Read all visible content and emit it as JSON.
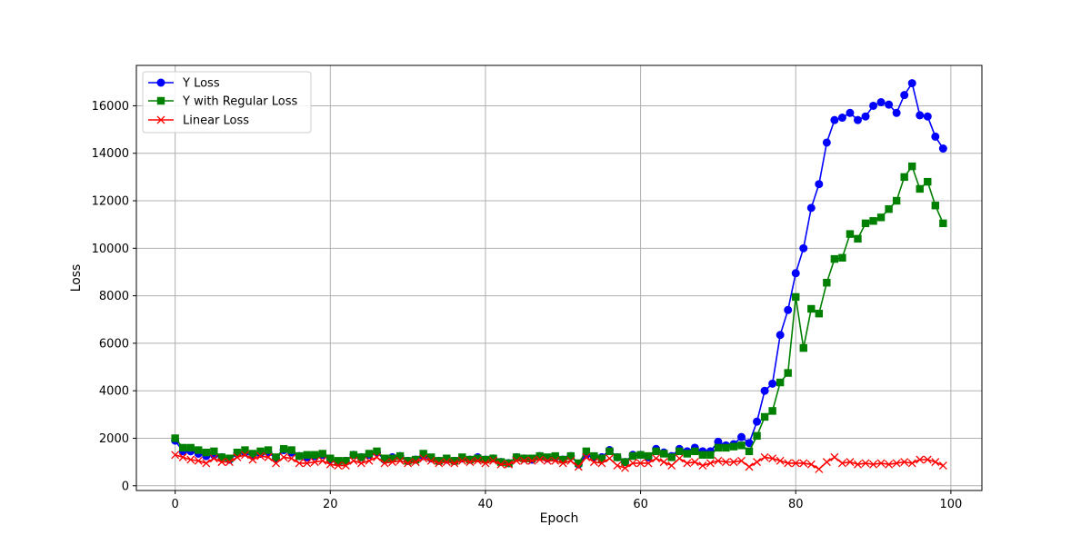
{
  "chart_data": {
    "type": "line",
    "title": "",
    "xlabel": "Epoch",
    "ylabel": "Loss",
    "xlim": [
      -5,
      104
    ],
    "ylim": [
      -200,
      17700
    ],
    "xticks": [
      0,
      20,
      40,
      60,
      80,
      100
    ],
    "yticks": [
      0,
      2000,
      4000,
      6000,
      8000,
      10000,
      12000,
      14000,
      16000
    ],
    "grid": true,
    "legend_position": "top-left",
    "series": [
      {
        "name": "Y Loss",
        "color": "#0000ff",
        "marker": "circle",
        "values": [
          1900,
          1450,
          1450,
          1350,
          1250,
          1300,
          1200,
          1100,
          1350,
          1400,
          1250,
          1350,
          1400,
          1150,
          1500,
          1400,
          1250,
          1200,
          1250,
          1300,
          1100,
          1000,
          1050,
          1300,
          1200,
          1300,
          1400,
          1100,
          1200,
          1250,
          1050,
          1100,
          1250,
          1150,
          1050,
          1100,
          1050,
          1150,
          1100,
          1200,
          1100,
          1150,
          1000,
          950,
          1200,
          1150,
          1100,
          1250,
          1150,
          1200,
          1100,
          1250,
          900,
          1300,
          1200,
          1200,
          1500,
          1200,
          1000,
          1300,
          1300,
          1200,
          1550,
          1400,
          1250,
          1550,
          1450,
          1600,
          1450,
          1450,
          1850,
          1700,
          1750,
          2050,
          1800,
          2700,
          4000,
          4300,
          6350,
          7400,
          8950,
          10000,
          11700,
          12700,
          14450,
          15400,
          15500,
          15700,
          15400,
          15550,
          16000,
          16150,
          16050,
          15700,
          16450,
          16950,
          15600,
          15550,
          14700,
          14200
        ]
      },
      {
        "name": "Y with Regular Loss",
        "color": "#008000",
        "marker": "square",
        "values": [
          2000,
          1600,
          1600,
          1500,
          1400,
          1450,
          1200,
          1150,
          1400,
          1500,
          1350,
          1450,
          1500,
          1200,
          1550,
          1500,
          1250,
          1300,
          1300,
          1350,
          1150,
          1050,
          1050,
          1300,
          1200,
          1350,
          1450,
          1150,
          1150,
          1250,
          1050,
          1100,
          1350,
          1200,
          1050,
          1150,
          1050,
          1200,
          1100,
          1150,
          1100,
          1150,
          1000,
          950,
          1200,
          1150,
          1150,
          1250,
          1200,
          1250,
          1100,
          1250,
          950,
          1450,
          1250,
          1150,
          1450,
          1200,
          1000,
          1250,
          1300,
          1250,
          1450,
          1350,
          1200,
          1450,
          1350,
          1450,
          1300,
          1300,
          1600,
          1600,
          1650,
          1700,
          1450,
          2100,
          2900,
          3150,
          4350,
          4750,
          7950,
          5800,
          7450,
          7250,
          8550,
          9550,
          9600,
          10600,
          10400,
          11050,
          11150,
          11300,
          11650,
          12000,
          13000,
          13450,
          12500,
          12800,
          11800,
          11050
        ]
      },
      {
        "name": "Linear Loss",
        "color": "#ff0000",
        "marker": "x",
        "values": [
          1300,
          1200,
          1100,
          1050,
          950,
          1150,
          1000,
          1000,
          1200,
          1300,
          1100,
          1250,
          1200,
          950,
          1200,
          1150,
          950,
          950,
          1000,
          1050,
          900,
          850,
          850,
          1050,
          950,
          1050,
          1200,
          950,
          1000,
          1050,
          950,
          1000,
          1150,
          1050,
          950,
          1000,
          950,
          1050,
          1000,
          1050,
          950,
          1050,
          900,
          900,
          1050,
          1050,
          1050,
          1100,
          1050,
          1050,
          950,
          1050,
          800,
          1200,
          1000,
          950,
          1150,
          850,
          750,
          950,
          950,
          950,
          1150,
          1000,
          850,
          1150,
          950,
          1000,
          850,
          950,
          1050,
          1000,
          1000,
          1050,
          800,
          1000,
          1200,
          1150,
          1050,
          950,
          950,
          950,
          900,
          700,
          1000,
          1200,
          950,
          1000,
          900,
          950,
          900,
          950,
          900,
          950,
          1000,
          950,
          1100,
          1100,
          1000,
          850
        ]
      }
    ]
  }
}
